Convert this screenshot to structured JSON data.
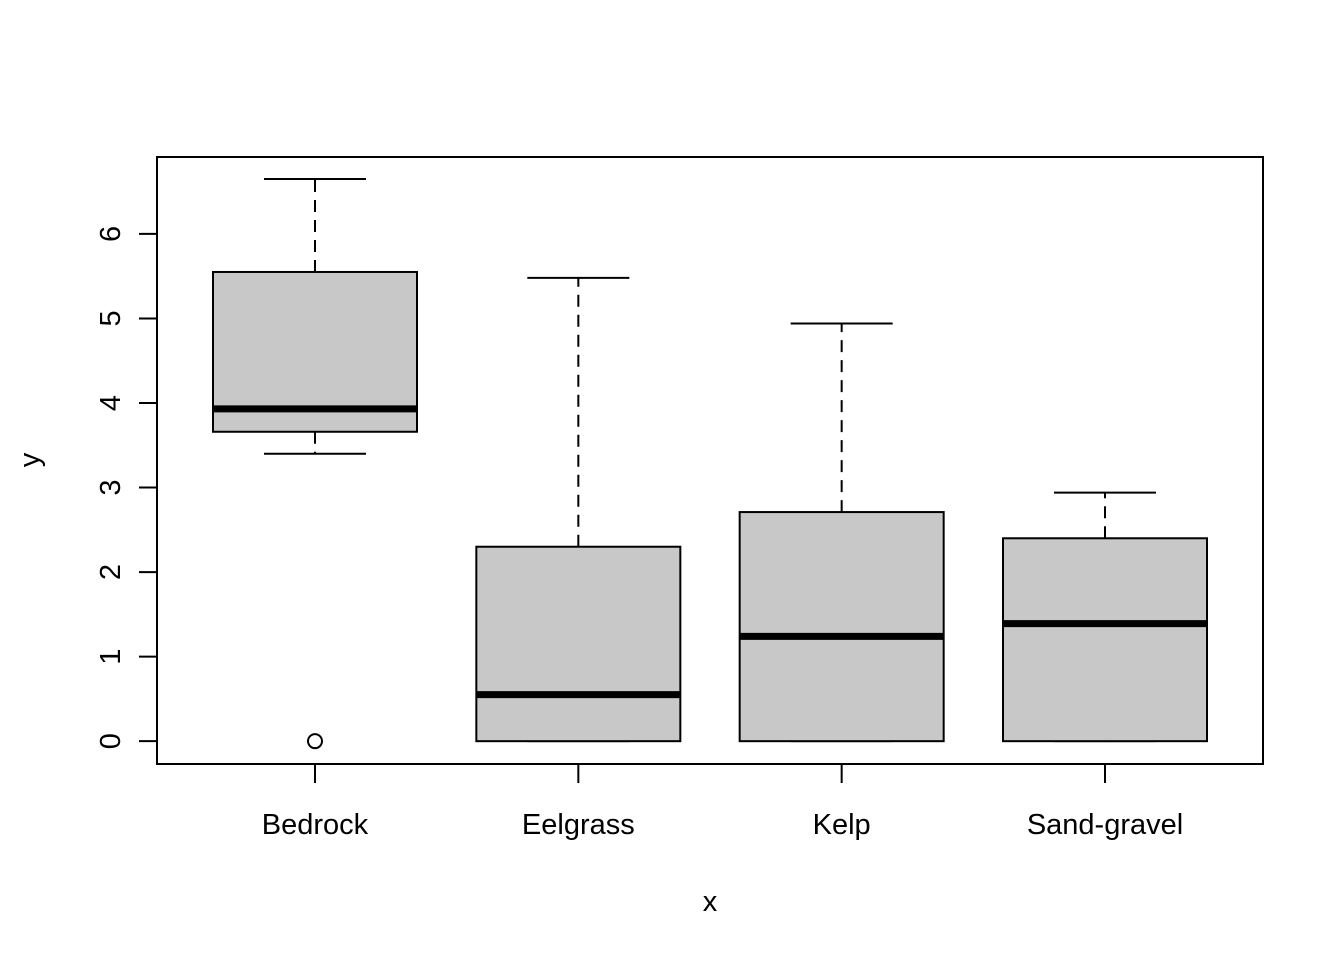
{
  "chart_data": {
    "type": "box",
    "title": "",
    "xlabel": "x",
    "ylabel": "y",
    "ylim": [
      -0.27,
      6.91
    ],
    "yticks": [
      0,
      1,
      2,
      3,
      4,
      5,
      6
    ],
    "categories": [
      "Bedrock",
      "Eelgrass",
      "Kelp",
      "Sand-gravel"
    ],
    "boxes": [
      {
        "category": "Bedrock",
        "whisker_low": 3.4,
        "q1": 3.66,
        "median": 3.93,
        "q3": 5.55,
        "whisker_high": 6.65,
        "outliers": [
          0.0
        ]
      },
      {
        "category": "Eelgrass",
        "whisker_low": 0.0,
        "q1": 0.0,
        "median": 0.55,
        "q3": 2.3,
        "whisker_high": 5.48,
        "outliers": []
      },
      {
        "category": "Kelp",
        "whisker_low": 0.0,
        "q1": 0.0,
        "median": 1.24,
        "q3": 2.71,
        "whisker_high": 4.94,
        "outliers": []
      },
      {
        "category": "Sand-gravel",
        "whisker_low": 0.0,
        "q1": 0.0,
        "median": 1.39,
        "q3": 2.4,
        "whisker_high": 2.94,
        "outliers": []
      }
    ],
    "colors": {
      "box_fill": "#c8c8c8",
      "stroke": "#000000"
    },
    "grid": false,
    "legend": "none"
  }
}
